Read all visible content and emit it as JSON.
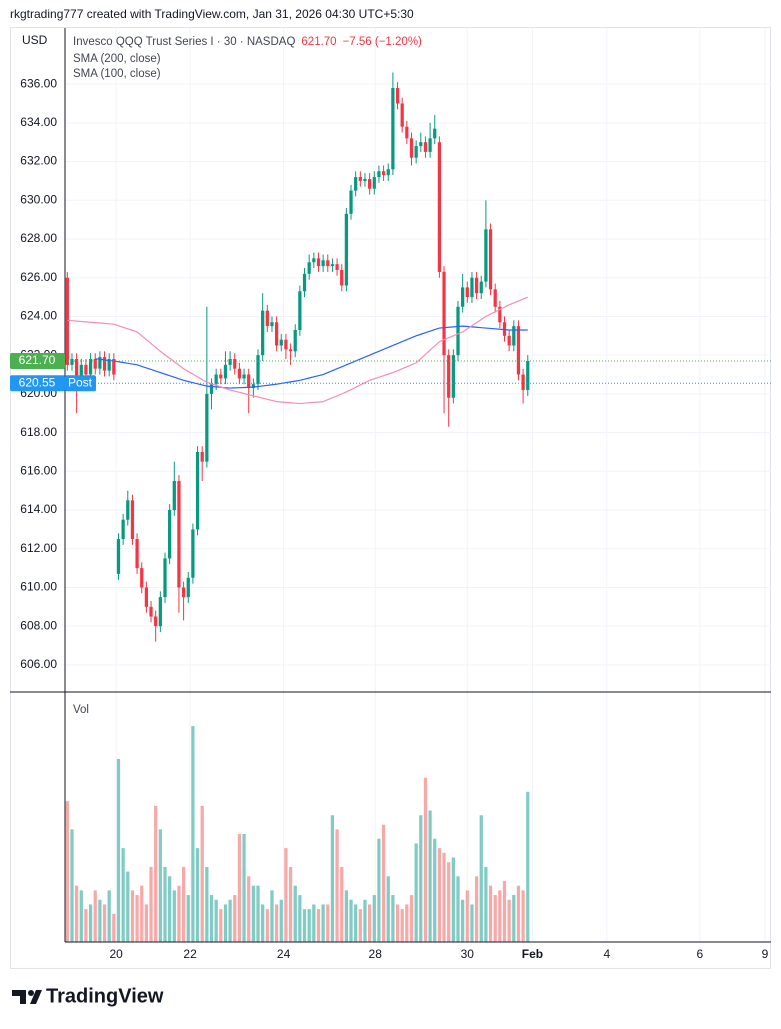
{
  "header": {
    "credit": "rkgtrading777 created with TradingView.com, Jan 31, 2026 04:30 UTC+5:30"
  },
  "footer": {
    "brand": "TradingView"
  },
  "chart_data": {
    "type": "candlestick",
    "currency": "USD",
    "symbol": "Invesco QQQ Trust Series I · 30 · NASDAQ",
    "last": "621.70",
    "change": "−7.56 (−1.20%)",
    "up_color": "#089981",
    "down_color": "#f23645",
    "grid": true,
    "ylim": [
      604.6,
      638.9
    ],
    "yticks": [
      {
        "value": 606,
        "label": "606.00"
      },
      {
        "value": 608,
        "label": "608.00"
      },
      {
        "value": 610,
        "label": "610.00"
      },
      {
        "value": 612,
        "label": "612.00"
      },
      {
        "value": 614,
        "label": "614.00"
      },
      {
        "value": 616,
        "label": "616.00"
      },
      {
        "value": 618,
        "label": "618.00"
      },
      {
        "value": 620,
        "label": "620.00"
      },
      {
        "value": 622,
        "label": "622.00"
      },
      {
        "value": 624,
        "label": "624.00"
      },
      {
        "value": 626,
        "label": "626.00"
      },
      {
        "value": 628,
        "label": "628.00"
      },
      {
        "value": 630,
        "label": "630.00"
      },
      {
        "value": 632,
        "label": "632.00"
      },
      {
        "value": 634,
        "label": "634.00"
      },
      {
        "value": 636,
        "label": "636.00"
      }
    ],
    "xlim": [
      -0.5,
      151.3
    ],
    "xticks": [
      {
        "value": 10.5,
        "label": "20"
      },
      {
        "value": 26.4,
        "label": "22"
      },
      {
        "value": 46.5,
        "label": "24"
      },
      {
        "value": 66.2,
        "label": "28"
      },
      {
        "value": 86,
        "label": "30"
      },
      {
        "value": 100,
        "label": "Feb"
      },
      {
        "value": 116,
        "label": "4"
      },
      {
        "value": 136,
        "label": "6"
      },
      {
        "value": 150,
        "label": "9"
      }
    ],
    "price_lines": [
      {
        "value": 621.7,
        "label": "621.70",
        "color": "#4caf50"
      },
      {
        "value": 620.55,
        "label": "620.55",
        "tag": "Post",
        "color": "#2196f3"
      }
    ],
    "open": [
      626,
      621.5,
      621.8,
      620.5,
      621.5,
      621,
      621.8,
      621.3,
      621.9,
      621.2,
      621.8,
      610.7,
      612.5,
      613.5,
      614.5,
      612.5,
      611,
      610,
      609,
      608.5,
      608,
      609.5,
      611.5,
      614,
      615.5,
      610,
      609.5,
      610.5,
      613,
      617,
      616.5,
      620,
      620.5,
      621,
      620.8,
      621.5,
      621.8,
      621.3,
      620.8,
      621,
      620.3,
      620.5,
      622,
      624.3,
      623.5,
      623.7,
      622.5,
      622.8,
      622.3,
      622.2,
      623.3,
      625.3,
      626.2,
      626.8,
      627,
      626.6,
      626.9,
      626.6,
      626.7,
      626.4,
      625.6,
      629.3,
      630.5,
      631.2,
      631,
      631.1,
      630.6,
      631.2,
      631.5,
      631.3,
      631.6,
      635.8,
      635,
      633.8,
      633.2,
      632.2,
      632.8,
      633,
      632.5,
      633.2,
      633,
      626.3,
      622,
      619.8,
      622,
      624.5,
      625.5,
      625,
      626,
      625.2,
      625.8,
      628.5,
      625.4,
      624.5,
      623.7,
      623,
      622.5,
      623.5,
      621,
      620.2
    ],
    "high": [
      626.3,
      622.1,
      622.1,
      621.8,
      621.8,
      622.1,
      622.1,
      622.2,
      622.2,
      622.1,
      622.1,
      612.8,
      613.8,
      615,
      614.8,
      612.8,
      611.3,
      610.3,
      609.3,
      608.8,
      609.8,
      611.8,
      614.3,
      616.5,
      615.8,
      610.3,
      610.8,
      613.3,
      617.3,
      617.3,
      624.5,
      620.8,
      621.3,
      621.3,
      622.2,
      622.2,
      622.1,
      621.6,
      621.3,
      621.3,
      620.8,
      622.3,
      625.2,
      624.6,
      624,
      624,
      623.1,
      623.1,
      622.6,
      623.6,
      625.6,
      626.5,
      627.2,
      627.3,
      627.3,
      627.2,
      627.2,
      627,
      627,
      626.7,
      629.6,
      630.8,
      631.5,
      631.5,
      631.4,
      631.4,
      631.5,
      631.8,
      631.8,
      631.9,
      636.6,
      636.1,
      635.3,
      634.1,
      633.5,
      633.1,
      633.5,
      633.3,
      634,
      634.4,
      633.3,
      626.6,
      622.3,
      622.3,
      624.8,
      626.2,
      625.8,
      626.3,
      626.3,
      626.1,
      630,
      628.8,
      625.7,
      624.8,
      624,
      623.3,
      623.8,
      623.8,
      621.3,
      622
    ],
    "low": [
      621.2,
      621.2,
      619,
      620.2,
      620.7,
      620.7,
      621,
      621,
      620.9,
      620.9,
      620.7,
      610.4,
      612.2,
      613.2,
      612.2,
      610.7,
      609.7,
      608.7,
      608.2,
      607.2,
      607.7,
      609.2,
      611.2,
      613.7,
      608.7,
      608.3,
      609.2,
      610.2,
      612.7,
      615.5,
      616.2,
      619.2,
      620.2,
      620.5,
      620.5,
      621.2,
      621,
      620.5,
      620.5,
      619,
      619.8,
      620.2,
      621.7,
      623.2,
      623.2,
      622.2,
      622.2,
      621.8,
      621.5,
      621.9,
      623,
      625,
      625.9,
      626.5,
      626.3,
      626.3,
      626.3,
      626.3,
      626.1,
      625.3,
      625.3,
      629,
      630.2,
      630.7,
      630.7,
      630.3,
      630.3,
      630.9,
      631,
      631,
      631.3,
      634.7,
      633.5,
      632.9,
      631.8,
      631.9,
      632.5,
      632.2,
      632.2,
      632.9,
      626,
      619,
      618.3,
      619.5,
      621.7,
      624.2,
      624.7,
      624.7,
      624.9,
      624.9,
      625.5,
      625.1,
      624.2,
      623.4,
      622.7,
      622.2,
      622.2,
      620.7,
      619.5,
      619.9
    ],
    "close": [
      621.5,
      621.8,
      620.5,
      621.5,
      621,
      621.8,
      621.3,
      621.9,
      621.2,
      621.8,
      621,
      612.5,
      613.5,
      614.5,
      612.5,
      611,
      610,
      609,
      608.5,
      608,
      609.5,
      611.5,
      614,
      615.5,
      610,
      609.5,
      610.5,
      613,
      617,
      616.5,
      620,
      620.5,
      621,
      620.8,
      621.5,
      621.8,
      621.3,
      620.8,
      621,
      620.3,
      620.5,
      622,
      624.3,
      623.5,
      623.7,
      622.5,
      622.8,
      622.3,
      622.2,
      623.3,
      625.3,
      626.2,
      626.8,
      627,
      626.6,
      626.9,
      626.6,
      626.7,
      626.4,
      625.6,
      629.3,
      630.5,
      631.2,
      631,
      631.1,
      630.6,
      631.2,
      631.5,
      631.3,
      631.6,
      635.8,
      635,
      633.8,
      633.2,
      632.2,
      632.8,
      633,
      632.5,
      633.2,
      633.7,
      626.3,
      622,
      619.8,
      622,
      624.5,
      625.5,
      625,
      626,
      625.2,
      625.8,
      628.5,
      625.4,
      624.5,
      623.7,
      623,
      622.5,
      623.5,
      621,
      620.2,
      621.7
    ],
    "series": [
      {
        "name": "SMA (200, close)",
        "color": "#2962ff",
        "values": [
          null,
          null,
          null,
          null,
          null,
          null,
          621.8,
          621.8,
          621.75,
          621.72,
          621.7,
          621.66,
          621.62,
          621.58,
          621.54,
          621.5,
          621.42,
          621.34,
          621.26,
          621.18,
          621.1,
          621.02,
          620.94,
          620.86,
          620.78,
          620.7,
          620.64,
          620.58,
          620.52,
          620.46,
          620.4,
          620.38,
          620.36,
          620.34,
          620.32,
          620.3,
          620.31,
          620.32,
          620.33,
          620.34,
          620.35,
          620.38,
          620.41,
          620.44,
          620.47,
          620.5,
          620.54,
          620.58,
          620.62,
          620.66,
          620.7,
          620.76,
          620.82,
          620.88,
          620.94,
          621,
          621.1,
          621.2,
          621.3,
          621.4,
          621.5,
          621.6,
          621.7,
          621.8,
          621.9,
          622,
          622.1,
          622.2,
          622.3,
          622.4,
          622.5,
          622.6,
          622.7,
          622.8,
          622.9,
          623,
          623.08,
          623.16,
          623.24,
          623.32,
          623.4,
          623.42,
          623.44,
          623.46,
          623.48,
          623.5,
          623.48,
          623.46,
          623.44,
          623.42,
          623.4,
          623.38,
          623.36,
          623.34,
          623.32,
          623.3,
          623.3,
          623.3,
          623.3,
          623.3
        ]
      },
      {
        "name": "SMA (100, close)",
        "color": "#f48fb1",
        "values": [
          623.8,
          623.78,
          623.76,
          623.74,
          623.72,
          623.7,
          623.68,
          623.66,
          623.64,
          623.62,
          623.6,
          623.52,
          623.44,
          623.36,
          623.28,
          623.2,
          623,
          622.8,
          622.6,
          622.4,
          622.2,
          622.02,
          621.84,
          621.66,
          621.48,
          621.3,
          621.16,
          621.02,
          620.88,
          620.74,
          620.6,
          620.52,
          620.44,
          620.36,
          620.28,
          620.2,
          620.14,
          620.08,
          620.02,
          619.96,
          619.9,
          619.84,
          619.78,
          619.72,
          619.66,
          619.6,
          619.58,
          619.56,
          619.54,
          619.52,
          619.5,
          619.52,
          619.54,
          619.56,
          619.58,
          619.6,
          619.7,
          619.8,
          619.9,
          620,
          620.1,
          620.22,
          620.34,
          620.46,
          620.58,
          620.7,
          620.78,
          620.86,
          620.94,
          621.02,
          621.1,
          621.2,
          621.3,
          621.4,
          621.5,
          621.6,
          621.82,
          622.04,
          622.26,
          622.48,
          622.7,
          622.8,
          622.9,
          623,
          623.1,
          623.2,
          623.36,
          623.52,
          623.68,
          623.84,
          624,
          624.12,
          624.24,
          624.36,
          624.48,
          624.6,
          624.7,
          624.8,
          624.9,
          625
        ]
      }
    ],
    "volume": {
      "label": "Vol",
      "ylim": [
        0,
        245
      ],
      "up_color": "#80cbc4",
      "down_color": "#f7a9a7",
      "values": [
        150,
        120,
        60,
        55,
        35,
        40,
        55,
        45,
        40,
        55,
        30,
        195,
        100,
        75,
        55,
        50,
        60,
        40,
        80,
        145,
        120,
        80,
        70,
        55,
        60,
        80,
        50,
        230,
        100,
        145,
        80,
        50,
        45,
        35,
        40,
        45,
        50,
        115,
        115,
        70,
        60,
        60,
        40,
        35,
        55,
        40,
        45,
        100,
        80,
        60,
        50,
        35,
        35,
        40,
        35,
        40,
        40,
        135,
        120,
        80,
        55,
        45,
        40,
        35,
        45,
        40,
        50,
        110,
        125,
        70,
        50,
        40,
        35,
        40,
        50,
        105,
        135,
        175,
        140,
        110,
        100,
        95,
        85,
        90,
        70,
        45,
        55,
        40,
        70,
        135,
        80,
        60,
        50,
        55,
        65,
        45,
        50,
        60,
        55,
        160
      ]
    }
  }
}
